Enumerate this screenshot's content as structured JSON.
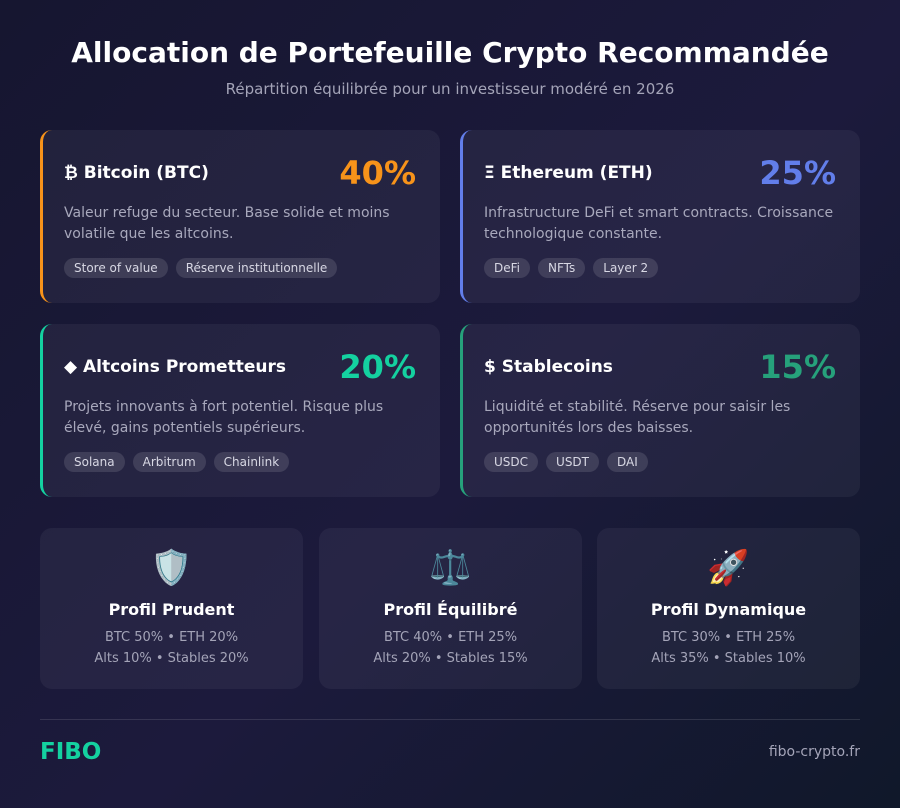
{
  "header": {
    "title": "Allocation de Portefeuille Crypto Recommandée",
    "subtitle": "Répartition équilibrée pour un investisseur modéré en 2026"
  },
  "cards": [
    {
      "title": "₿ Bitcoin (BTC)",
      "percent": "40%",
      "color": "#f7931a",
      "description": "Valeur refuge du secteur. Base solide et moins volatile que les altcoins.",
      "tags": [
        "Store of value",
        "Réserve institutionnelle"
      ]
    },
    {
      "title": "Ξ Ethereum (ETH)",
      "percent": "25%",
      "color": "#627eea",
      "description": "Infrastructure DeFi et smart contracts. Croissance technologique constante.",
      "tags": [
        "DeFi",
        "NFTs",
        "Layer 2"
      ]
    },
    {
      "title": "◆ Altcoins Prometteurs",
      "percent": "20%",
      "color": "#14d1a0",
      "description": "Projets innovants à fort potentiel. Risque plus élevé, gains potentiels supérieurs.",
      "tags": [
        "Solana",
        "Arbitrum",
        "Chainlink"
      ]
    },
    {
      "title": "$ Stablecoins",
      "percent": "15%",
      "color": "#26a17b",
      "description": "Liquidité et stabilité. Réserve pour saisir les opportunités lors des baisses.",
      "tags": [
        "USDC",
        "USDT",
        "DAI"
      ]
    }
  ],
  "profiles": [
    {
      "icon": "🛡️",
      "name": "Profil Prudent",
      "lines": [
        "BTC 50% • ETH 20%",
        "Alts 10% • Stables 20%"
      ]
    },
    {
      "icon": "⚖️",
      "name": "Profil Équilibré",
      "lines": [
        "BTC 40% • ETH 25%",
        "Alts 20% • Stables 15%"
      ]
    },
    {
      "icon": "🚀",
      "name": "Profil Dynamique",
      "lines": [
        "BTC 30% • ETH 25%",
        "Alts 35% • Stables 10%"
      ]
    }
  ],
  "footer": {
    "brand": "FIBO",
    "url": "fibo-crypto.fr"
  }
}
